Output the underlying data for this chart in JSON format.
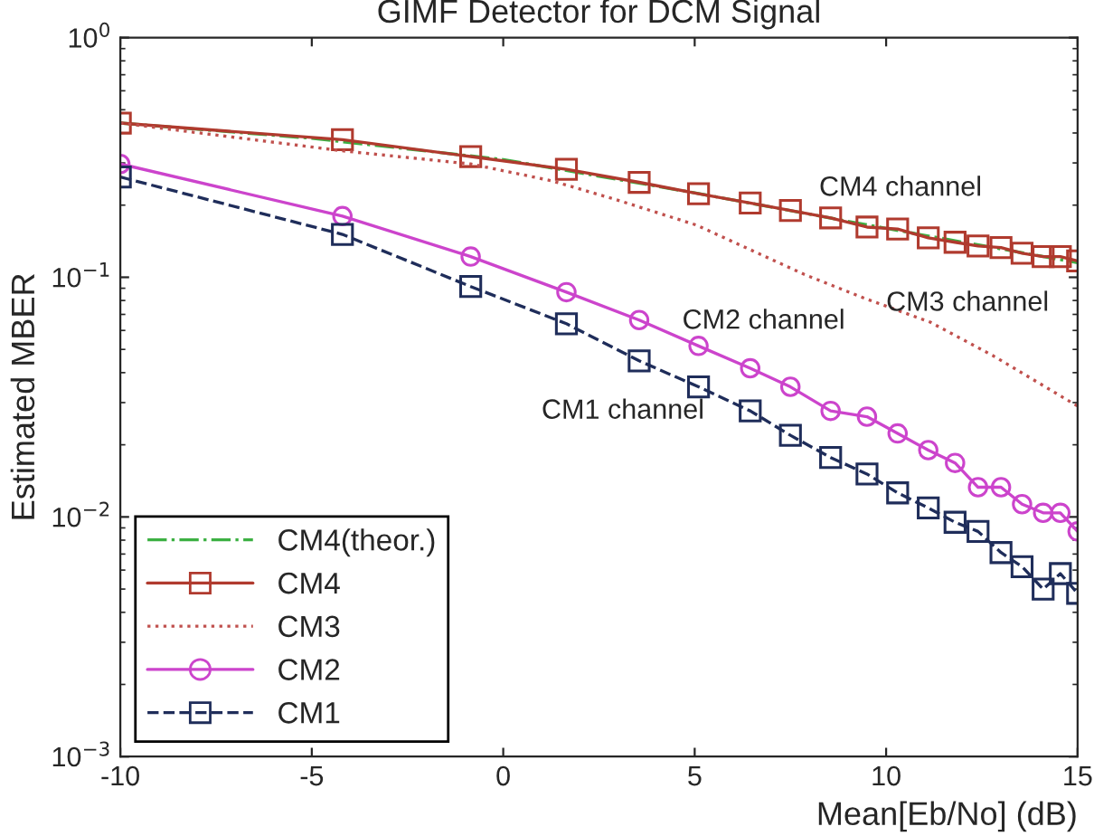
{
  "chart_data": {
    "type": "line",
    "title": "GIMF Detector for DCM Signal",
    "xlabel": "Mean[Eb/No] (dB)",
    "ylabel": "Estimated MBER",
    "log": "y",
    "xlim": [
      -10,
      15
    ],
    "ylim": [
      0.001,
      1
    ],
    "xticks": [
      -10,
      -5,
      0,
      5,
      10,
      15
    ],
    "yticks": [
      {
        "value": 0.001,
        "label": "10$^{−3}$"
      },
      {
        "value": 0.01,
        "label": "10$^{−2}$"
      },
      {
        "value": 0.1,
        "label": "10$^{−1}$"
      },
      {
        "value": 1,
        "label": "10$^{0}$"
      }
    ],
    "grid": false,
    "legend": "bottom left",
    "series": [
      {
        "name": "CM4(theor.)",
        "color": "#3cb043",
        "line_style": "dashdot",
        "marker": "none",
        "x": [
          -10,
          -5,
          0,
          5,
          10,
          15
        ],
        "values": [
          0.44,
          0.38,
          0.31,
          0.225,
          0.16,
          0.115
        ]
      },
      {
        "name": "CM4",
        "color": "#b03a2e",
        "line_style": "solid",
        "marker": "square",
        "x": [
          -10,
          -4.2,
          -0.85,
          1.65,
          3.55,
          5.1,
          6.45,
          7.5,
          8.55,
          9.5,
          10.3,
          11.1,
          11.8,
          12.4,
          13,
          13.55,
          14.1,
          14.55,
          15
        ],
        "values": [
          0.44,
          0.375,
          0.319,
          0.282,
          0.249,
          0.223,
          0.204,
          0.19,
          0.177,
          0.162,
          0.159,
          0.146,
          0.14,
          0.135,
          0.133,
          0.126,
          0.122,
          0.122,
          0.117
        ]
      },
      {
        "name": "CM3",
        "color": "#c0504d",
        "line_style": "dotted",
        "marker": "none",
        "x": [
          -10,
          -4.2,
          -0.85,
          1.25,
          2.9,
          5.05,
          7.85,
          9.5,
          11.15,
          12.8,
          15
        ],
        "values": [
          0.44,
          0.337,
          0.297,
          0.253,
          0.212,
          0.165,
          0.103,
          0.081,
          0.065,
          0.047,
          0.029
        ]
      },
      {
        "name": "CM2",
        "color": "#cc44cc",
        "line_style": "solid",
        "marker": "circle",
        "x": [
          -10,
          -4.2,
          -0.85,
          1.65,
          3.55,
          5.1,
          6.45,
          7.5,
          8.55,
          9.5,
          10.3,
          11.1,
          11.8,
          12.4,
          13,
          13.55,
          14.1,
          14.55,
          15
        ],
        "values": [
          0.297,
          0.18,
          0.122,
          0.0867,
          0.0663,
          0.0517,
          0.0417,
          0.0349,
          0.0277,
          0.0262,
          0.0223,
          0.019,
          0.0168,
          0.0133,
          0.0133,
          0.0113,
          0.0104,
          0.0104,
          0.0087
        ]
      },
      {
        "name": "CM1",
        "color": "#1f2d5a",
        "line_style": "dashed",
        "marker": "square",
        "x": [
          -10,
          -4.2,
          -0.85,
          1.65,
          3.55,
          5.1,
          6.45,
          7.5,
          8.55,
          9.5,
          10.3,
          11.1,
          11.8,
          12.4,
          13,
          13.55,
          14.1,
          14.55,
          15
        ],
        "values": [
          0.262,
          0.151,
          0.0915,
          0.064,
          0.0448,
          0.0349,
          0.0277,
          0.0219,
          0.0177,
          0.0151,
          0.0126,
          0.0109,
          0.0095,
          0.0087,
          0.0071,
          0.0062,
          0.005,
          0.0058,
          0.0048
        ]
      }
    ],
    "annotations": [
      "CM4 channel",
      "CM3 channel",
      "CM2 channel",
      "CM1 channel"
    ]
  }
}
